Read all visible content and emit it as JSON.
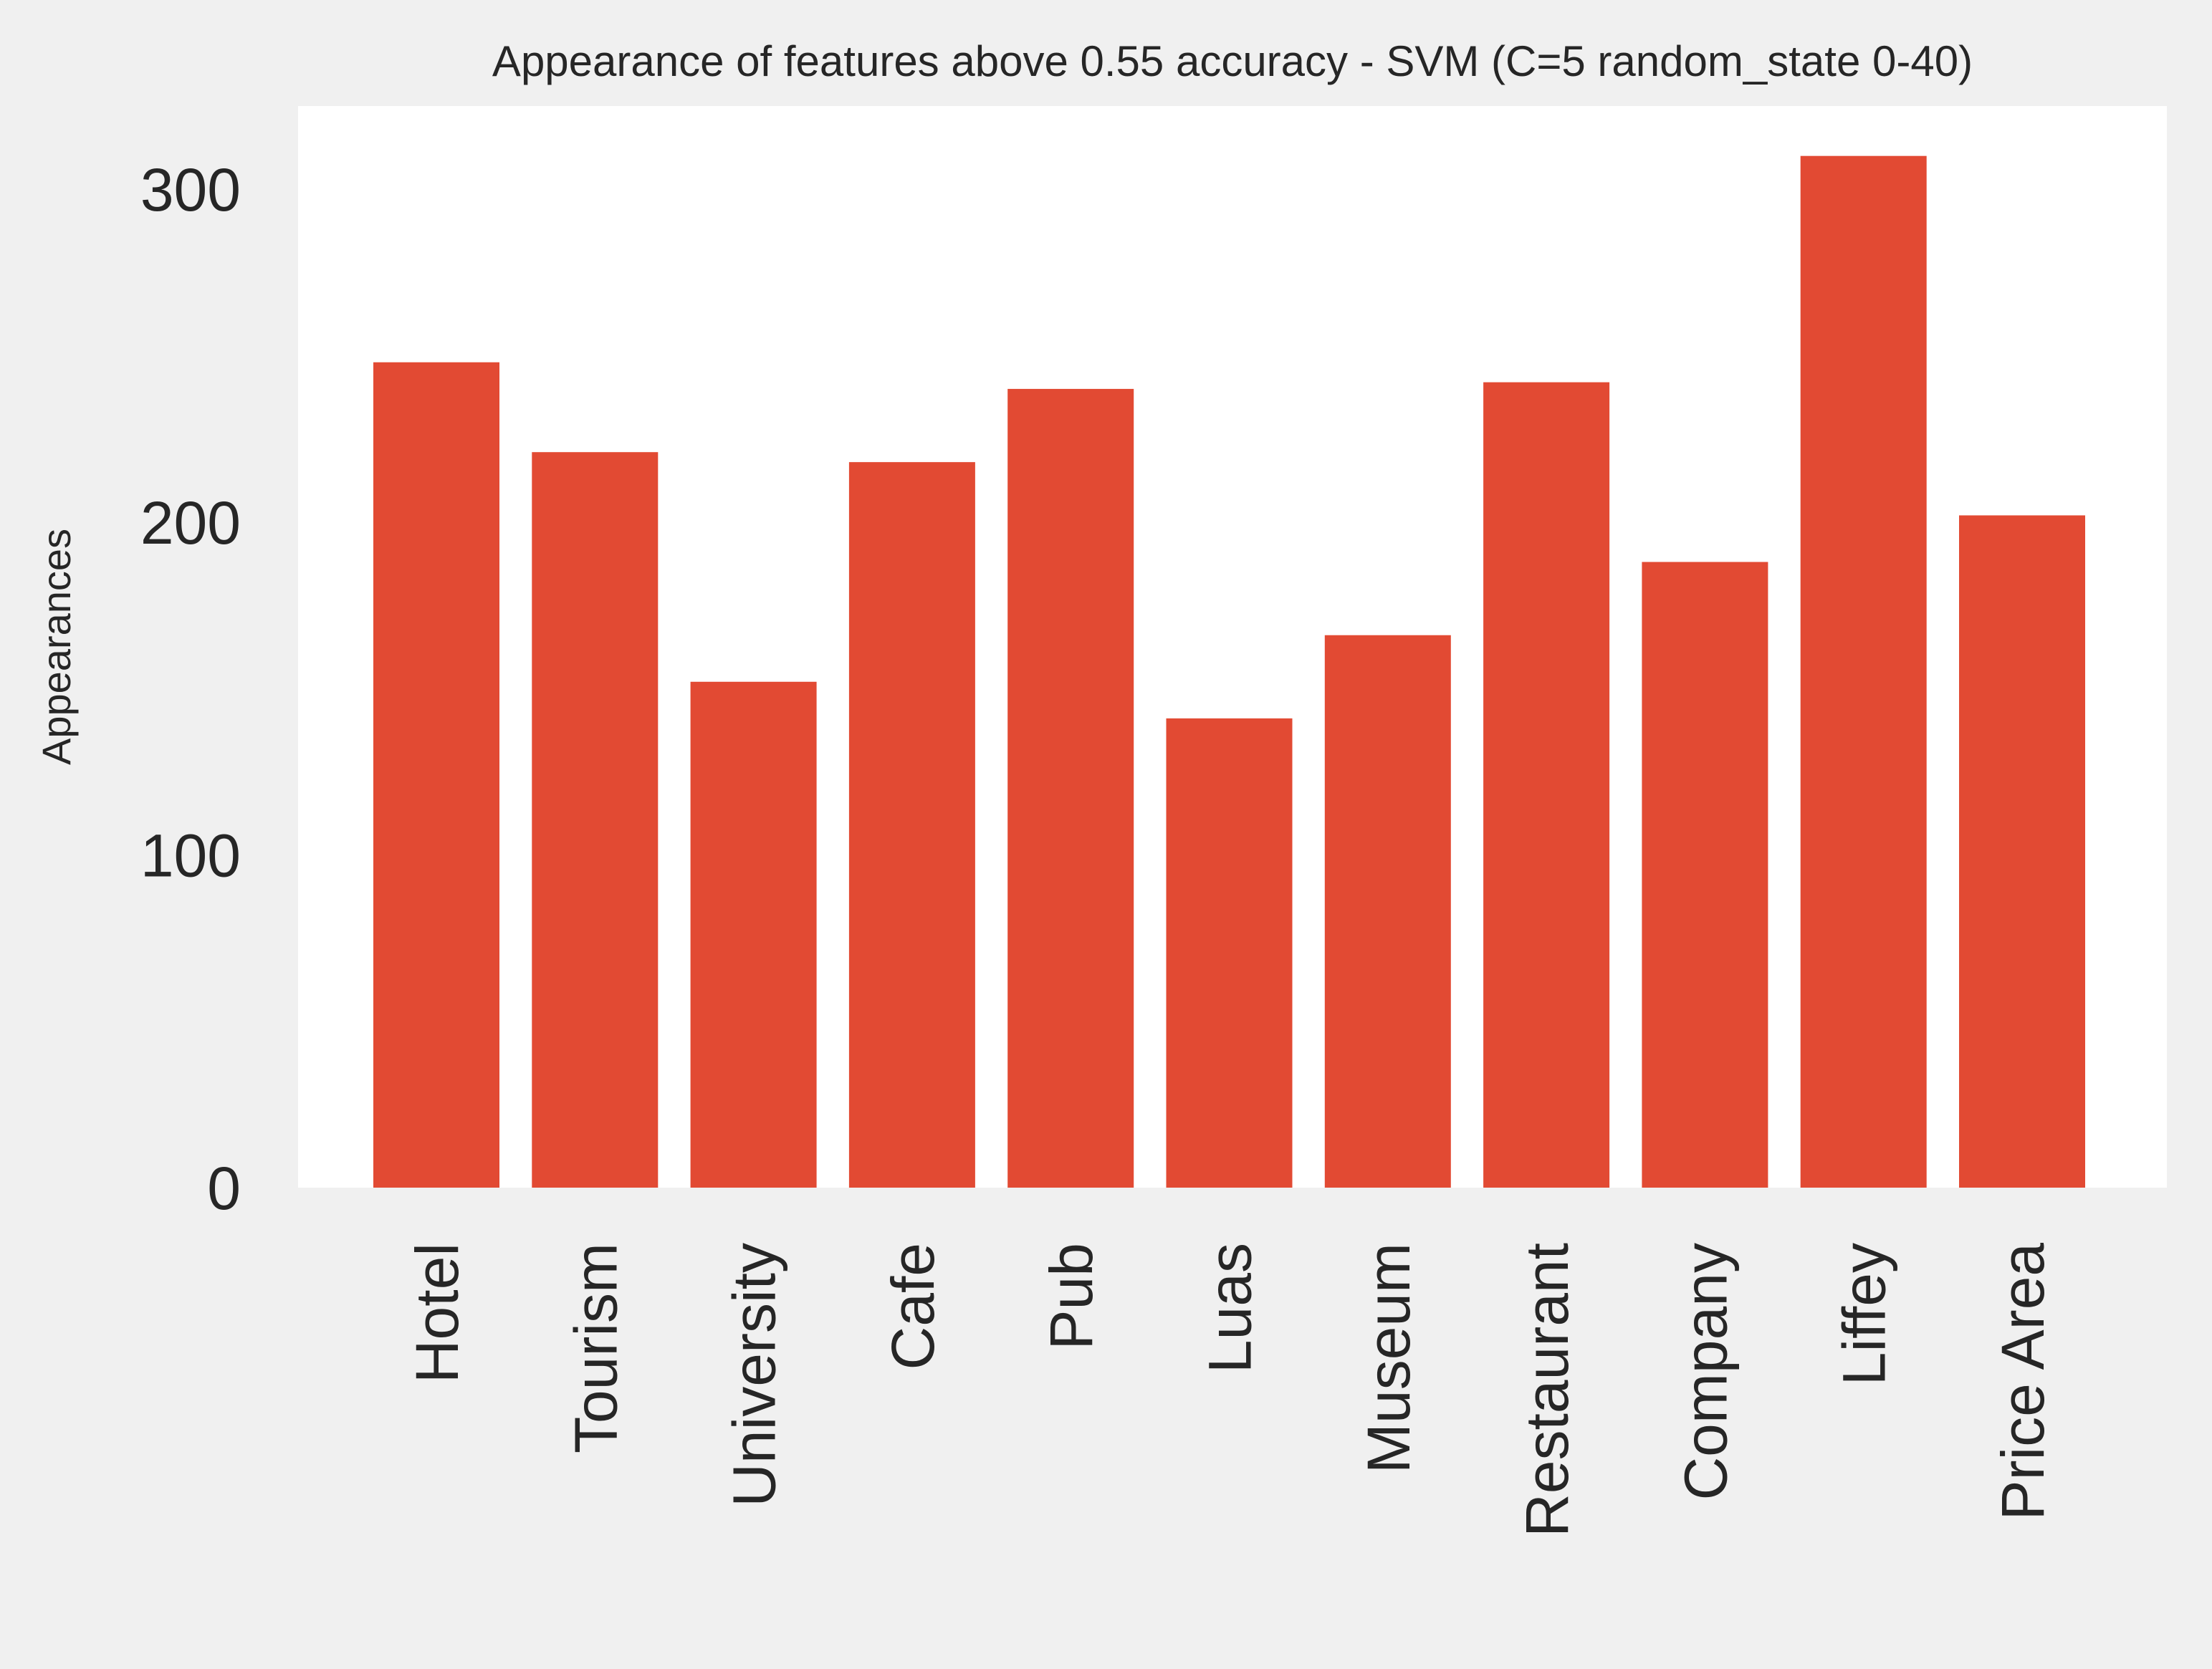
{
  "chart_data": {
    "type": "bar",
    "title": "Appearance of features above 0.55 accuracy - SVM (C=5 random_state 0-40)",
    "xlabel": "",
    "ylabel": "Appearances",
    "categories": [
      "Hotel",
      "Tourism",
      "University",
      "Cafe",
      "Pub",
      "Luas",
      "Museum",
      "Restaurant",
      "Company",
      "Liffey",
      "Price Area"
    ],
    "values": [
      248,
      221,
      152,
      218,
      240,
      141,
      166,
      242,
      188,
      310,
      202
    ],
    "ylim": [
      0,
      325
    ],
    "yticks": [
      0,
      100,
      200,
      300
    ],
    "bar_color": "#e24a33",
    "plot_background": "#ffffff",
    "figure_background": "#f0f0f0",
    "grid": false
  }
}
